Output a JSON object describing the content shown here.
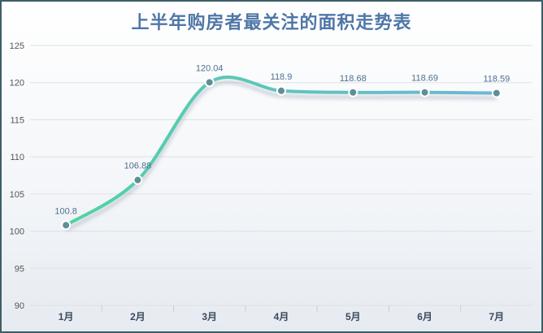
{
  "chart_data": {
    "type": "line",
    "title": "上半年购房者最关注的面积走势表",
    "categories": [
      "1月",
      "2月",
      "3月",
      "4月",
      "5月",
      "6月",
      "7月"
    ],
    "series": [
      {
        "values": [
          100.8,
          106.88,
          120.04,
          118.9,
          118.68,
          118.69,
          118.59
        ]
      }
    ],
    "data_labels": [
      "100.8",
      "106.88",
      "120.04",
      "118.9",
      "118.68",
      "118.69",
      "118.59"
    ],
    "ylim": [
      90,
      125
    ],
    "yticks": [
      90,
      95,
      100,
      105,
      110,
      115,
      120,
      125
    ],
    "grid": true,
    "smooth": true,
    "colors": {
      "line_start": "#4fd3a3",
      "line_end": "#6db6d6",
      "marker": "#5f8f94",
      "title": "#4f76a8",
      "label": "#4f6f8f",
      "grid": "#dde1e6"
    }
  }
}
